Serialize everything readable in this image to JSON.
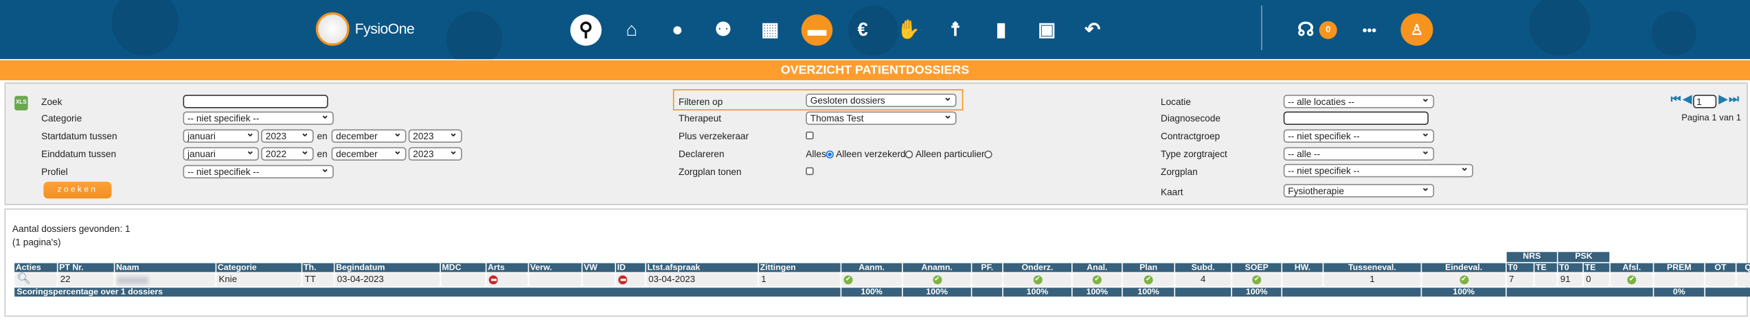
{
  "header": {
    "brand": "FysioOne",
    "notification_count": "0",
    "nav_icons": [
      "search-icon",
      "home-icon",
      "user-add-icon",
      "users-icon",
      "calendar-icon",
      "folder-icon",
      "euro-icon",
      "handshake-icon",
      "posture-icon",
      "chart-icon",
      "contacts-icon",
      "back-icon"
    ],
    "active_icon": "folder-icon",
    "accent": "#f7941d",
    "bar_color": "#0b5585"
  },
  "title": "OVERZICHT PATIENTDOSSIERS",
  "filters": {
    "zoek_label": "Zoek",
    "zoek_value": "",
    "categorie_label": "Categorie",
    "categorie_value": "-- niet specifiek --",
    "startdatum_label": "Startdatum tussen",
    "startdatum": {
      "from_month": "januari",
      "from_year": "2023",
      "to_month": "december",
      "to_year": "2023"
    },
    "einddatum_label": "Einddatum tussen",
    "einddatum": {
      "from_month": "januari",
      "from_year": "2022",
      "to_month": "december",
      "to_year": "2023"
    },
    "en": "en",
    "profiel_label": "Profiel",
    "profiel_value": "-- niet specifiek --",
    "zoeken_button": "zoeken",
    "filteren_label": "Filteren op",
    "filteren_value": "Gesloten dossiers",
    "therapeut_label": "Therapeut",
    "therapeut_value": "Thomas Test",
    "plus_label": "Plus verzekeraar",
    "plus_checked": false,
    "declareren_label": "Declareren",
    "declareren_options": [
      "Alles",
      "Alleen verzekerd",
      "Alleen particulier"
    ],
    "declareren_selected": "Alles",
    "zorgplan_tonen_label": "Zorgplan tonen",
    "zorgplan_tonen_checked": false,
    "locatie_label": "Locatie",
    "locatie_value": "-- alle locaties --",
    "diagnosecode_label": "Diagnosecode",
    "diagnosecode_value": "",
    "contractgroep_label": "Contractgroep",
    "contractgroep_value": "-- niet specifiek --",
    "zorgtraject_label": "Type zorgtraject",
    "zorgtraject_value": "-- alle --",
    "zorgplan_label": "Zorgplan",
    "zorgplan_value": "-- niet specifiek --",
    "kaart_label": "Kaart",
    "kaart_value": "Fysiotherapie"
  },
  "pager": {
    "page": "1",
    "text": "Pagina 1 van 1"
  },
  "results": {
    "count_text": "Aantal dossiers gevonden: 1",
    "pages_text": "(1 pagina's)",
    "group_headers": {
      "NRS": "NRS",
      "PSK": "PSK"
    },
    "columns": [
      "Acties",
      "PT Nr.",
      "Naam",
      "Categorie",
      "Th.",
      "Begindatum",
      "MDC",
      "Arts",
      "Verw.",
      "VW",
      "ID",
      "Ltst.afspraak",
      "Zittingen",
      "Aanm.",
      "Anamn.",
      "PF.",
      "Onderz.",
      "Anal.",
      "Plan",
      "Subd.",
      "SOEP",
      "HW.",
      "Tusseneval.",
      "Eindeval.",
      "T0",
      "TE",
      "T0",
      "TE",
      "Afsl.",
      "PREM",
      "OT",
      "QC"
    ],
    "rows": [
      [
        "search-icon",
        "22",
        "",
        "Knie",
        "TT",
        "03-04-2023",
        "",
        "no-entry-icon",
        "",
        "",
        "no-entry-icon",
        "03-04-2023",
        "1",
        "check-icon",
        "check-icon",
        "",
        "check-icon",
        "check-icon",
        "check-icon",
        "4",
        "check-icon",
        "",
        "1",
        "check-icon",
        "7",
        "",
        "91",
        "0",
        "check-icon",
        "",
        "",
        ""
      ]
    ],
    "footer": {
      "label": "Scoringspercentage over 1 dossiers",
      "aanm": "100%",
      "anamn": "100%",
      "onderz": "100%",
      "anal": "100%",
      "plan": "100%",
      "soep": "100%",
      "eindeval": "100%",
      "prem": "0%"
    }
  }
}
